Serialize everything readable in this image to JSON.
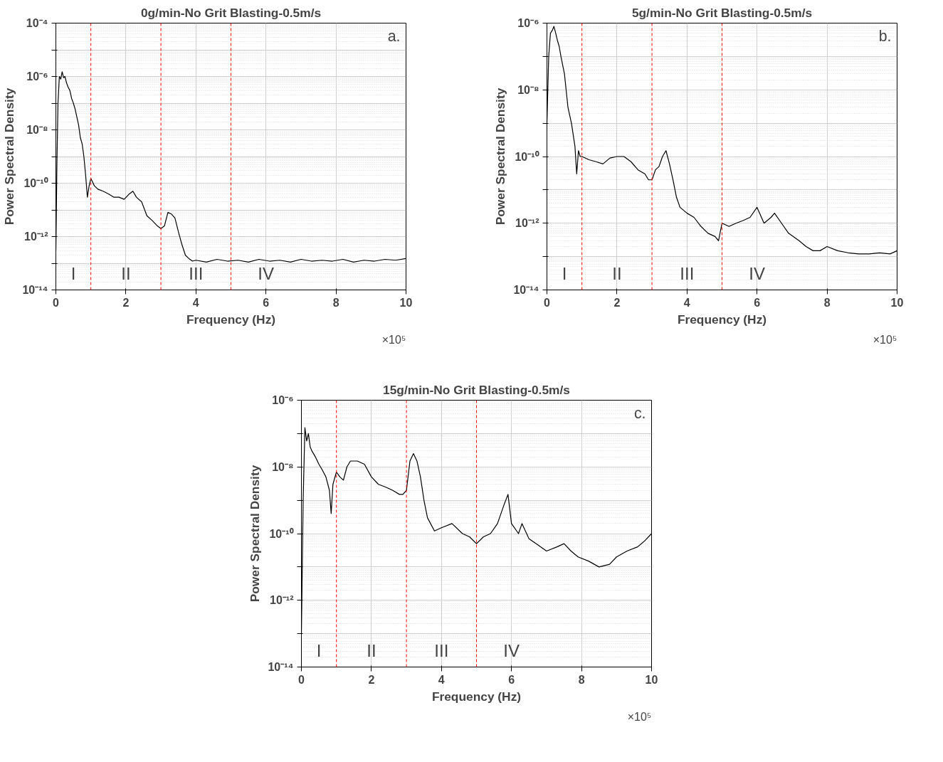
{
  "chart_data": [
    {
      "type": "line",
      "title": "0g/min-No Grit Blasting-0.5m/s",
      "xlabel": "Frequency (Hz)",
      "ylabel": "Power Spectral Density",
      "log": "y",
      "grid": true,
      "line_style": "solid",
      "marker": "none",
      "xlim": [
        0,
        10
      ],
      "xticks": [
        0,
        2,
        4,
        6,
        8,
        10
      ],
      "ylim": [
        1e-14,
        0.0001
      ],
      "yticks": [
        {
          "value": 1e-14,
          "label": "10⁻¹⁴"
        },
        {
          "value": 1e-13,
          "label": null
        },
        {
          "value": 1e-12,
          "label": "10⁻¹²"
        },
        {
          "value": 1e-11,
          "label": null
        },
        {
          "value": 1e-10,
          "label": "10⁻¹⁰"
        },
        {
          "value": 1e-09,
          "label": null
        },
        {
          "value": 1e-08,
          "label": "10⁻⁸"
        },
        {
          "value": 1e-07,
          "label": null
        },
        {
          "value": 1e-06,
          "label": "10⁻⁶"
        },
        {
          "value": 1e-05,
          "label": null
        },
        {
          "value": 0.0001,
          "label": "10⁻⁴"
        }
      ],
      "series": [
        {
          "color": "#000000",
          "x": [
            0.0,
            0.03,
            0.06,
            0.1,
            0.14,
            0.18,
            0.22,
            0.26,
            0.3,
            0.35,
            0.4,
            0.45,
            0.5,
            0.55,
            0.6,
            0.65,
            0.7,
            0.75,
            0.8,
            0.85,
            0.9,
            0.95,
            1.0,
            1.1,
            1.2,
            1.35,
            1.5,
            1.65,
            1.8,
            1.95,
            2.1,
            2.2,
            2.3,
            2.45,
            2.6,
            2.75,
            2.9,
            3.0,
            3.1,
            3.2,
            3.3,
            3.4,
            3.5,
            3.6,
            3.7,
            3.8,
            3.9,
            4.0,
            4.3,
            4.6,
            4.9,
            5.2,
            5.5,
            5.8,
            6.1,
            6.4,
            6.7,
            7.0,
            7.3,
            7.6,
            7.9,
            8.2,
            8.5,
            8.8,
            9.1,
            9.4,
            9.7,
            10.0
          ],
          "values": [
            3e-13,
            5e-10,
            1e-07,
            1e-06,
            8e-07,
            1.5e-06,
            9e-07,
            1e-06,
            6e-07,
            4e-07,
            3e-07,
            1.5e-07,
            1e-07,
            6e-08,
            3e-08,
            1.5e-08,
            5e-09,
            3e-09,
            1e-09,
            2e-10,
            3e-11,
            8e-11,
            1.5e-10,
            8e-11,
            6e-11,
            5e-11,
            4e-11,
            3e-11,
            3e-11,
            2.5e-11,
            4e-11,
            5e-11,
            3e-11,
            2e-11,
            6e-12,
            4e-12,
            2.5e-12,
            2e-12,
            2.5e-12,
            8e-12,
            7e-12,
            5e-12,
            1.5e-12,
            5e-13,
            2e-13,
            1.5e-13,
            1.2e-13,
            1.3e-13,
            1.1e-13,
            1.4e-13,
            1.2e-13,
            1.3e-13,
            1.1e-13,
            1.4e-13,
            1.2e-13,
            1.3e-13,
            1.1e-13,
            1.4e-13,
            1.2e-13,
            1.3e-13,
            1.2e-13,
            1.4e-13,
            1.1e-13,
            1.3e-13,
            1.2e-13,
            1.4e-13,
            1.3e-13,
            1.5e-13
          ]
        }
      ],
      "ref_lines": [
        {
          "axis": "x",
          "value": 1,
          "color": "#ff0000",
          "line_style": "dashed"
        },
        {
          "axis": "x",
          "value": 3,
          "color": "#ff0000",
          "line_style": "dashed"
        },
        {
          "axis": "x",
          "value": 5,
          "color": "#ff0000",
          "line_style": "dashed"
        }
      ],
      "annotations": [
        "a.",
        "×10⁵",
        "I",
        "II",
        "III",
        "IV"
      ]
    },
    {
      "type": "line",
      "title": "5g/min-No Grit Blasting-0.5m/s",
      "xlabel": "Frequency (Hz)",
      "ylabel": "Power Spectral Density",
      "log": "y",
      "grid": true,
      "line_style": "solid",
      "marker": "none",
      "xlim": [
        0,
        10
      ],
      "xticks": [
        0,
        2,
        4,
        6,
        8,
        10
      ],
      "ylim": [
        1e-14,
        1e-06
      ],
      "yticks": [
        {
          "value": 1e-14,
          "label": "10⁻¹⁴"
        },
        {
          "value": 1e-13,
          "label": null
        },
        {
          "value": 1e-12,
          "label": "10⁻¹²"
        },
        {
          "value": 1e-11,
          "label": null
        },
        {
          "value": 1e-10,
          "label": "10⁻¹⁰"
        },
        {
          "value": 1e-09,
          "label": null
        },
        {
          "value": 1e-08,
          "label": "10⁻⁸"
        },
        {
          "value": 1e-07,
          "label": null
        },
        {
          "value": 1e-06,
          "label": "10⁻⁶"
        }
      ],
      "series": [
        {
          "color": "#000000",
          "x": [
            0.0,
            0.05,
            0.1,
            0.15,
            0.2,
            0.25,
            0.3,
            0.35,
            0.4,
            0.5,
            0.6,
            0.7,
            0.8,
            0.85,
            0.9,
            0.95,
            1.0,
            1.2,
            1.4,
            1.6,
            1.8,
            2.0,
            2.2,
            2.4,
            2.6,
            2.8,
            2.9,
            3.0,
            3.1,
            3.2,
            3.3,
            3.4,
            3.5,
            3.6,
            3.7,
            3.8,
            4.0,
            4.2,
            4.4,
            4.6,
            4.8,
            4.9,
            5.0,
            5.2,
            5.4,
            5.6,
            5.8,
            6.0,
            6.2,
            6.4,
            6.5,
            6.7,
            6.9,
            7.2,
            7.4,
            7.6,
            7.8,
            8.0,
            8.3,
            8.6,
            8.9,
            9.2,
            9.5,
            9.8,
            10.0
          ],
          "values": [
            1e-09,
            1e-07,
            5e-07,
            6e-07,
            8e-07,
            5e-07,
            3e-07,
            2e-07,
            1e-07,
            3e-08,
            3e-09,
            1e-09,
            2e-10,
            3e-11,
            1.5e-10,
            1e-10,
            1e-10,
            8e-11,
            7e-11,
            6e-11,
            9e-11,
            1e-10,
            1e-10,
            7e-11,
            4e-11,
            3e-11,
            2e-11,
            2e-11,
            4e-11,
            5e-11,
            1e-10,
            1.5e-10,
            6e-11,
            2e-11,
            6e-12,
            3e-12,
            2e-12,
            1.5e-12,
            8e-13,
            5e-13,
            4e-13,
            3e-13,
            1e-12,
            8e-13,
            1e-12,
            1.2e-12,
            1.5e-12,
            3e-12,
            1e-12,
            1.5e-12,
            2e-12,
            1e-12,
            5e-13,
            3e-13,
            2e-13,
            1.5e-13,
            1.5e-13,
            2e-13,
            1.5e-13,
            1.3e-13,
            1.2e-13,
            1.2e-13,
            1.3e-13,
            1.2e-13,
            1.5e-13
          ]
        }
      ],
      "ref_lines": [
        {
          "axis": "x",
          "value": 1,
          "color": "#ff0000",
          "line_style": "dashed"
        },
        {
          "axis": "x",
          "value": 3,
          "color": "#ff0000",
          "line_style": "dashed"
        },
        {
          "axis": "x",
          "value": 5,
          "color": "#ff0000",
          "line_style": "dashed"
        }
      ],
      "annotations": [
        "b.",
        "×10⁵",
        "I",
        "II",
        "III",
        "IV"
      ]
    },
    {
      "type": "line",
      "title": "15g/min-No Grit Blasting-0.5m/s",
      "xlabel": "Frequency (Hz)",
      "ylabel": "Power Spectral Density",
      "log": "y",
      "grid": true,
      "line_style": "solid",
      "marker": "none",
      "xlim": [
        0,
        10
      ],
      "xticks": [
        0,
        2,
        4,
        6,
        8,
        10
      ],
      "ylim": [
        1e-14,
        1e-06
      ],
      "yticks": [
        {
          "value": 1e-14,
          "label": "10⁻¹⁴"
        },
        {
          "value": 1e-13,
          "label": null
        },
        {
          "value": 1e-12,
          "label": "10⁻¹²"
        },
        {
          "value": 1e-11,
          "label": null
        },
        {
          "value": 1e-10,
          "label": "10⁻¹⁰"
        },
        {
          "value": 1e-09,
          "label": null
        },
        {
          "value": 1e-08,
          "label": "10⁻⁸"
        },
        {
          "value": 1e-07,
          "label": null
        },
        {
          "value": 1e-06,
          "label": "10⁻⁶"
        }
      ],
      "series": [
        {
          "color": "#000000",
          "x": [
            0.0,
            0.05,
            0.1,
            0.15,
            0.2,
            0.25,
            0.3,
            0.4,
            0.5,
            0.6,
            0.7,
            0.8,
            0.85,
            0.9,
            1.0,
            1.1,
            1.2,
            1.3,
            1.4,
            1.6,
            1.8,
            2.0,
            2.2,
            2.4,
            2.6,
            2.8,
            2.9,
            3.0,
            3.1,
            3.2,
            3.3,
            3.4,
            3.5,
            3.6,
            3.8,
            4.0,
            4.3,
            4.6,
            4.8,
            5.0,
            5.2,
            5.4,
            5.6,
            5.8,
            5.9,
            6.0,
            6.2,
            6.3,
            6.5,
            6.7,
            7.0,
            7.3,
            7.5,
            7.7,
            7.9,
            8.2,
            8.5,
            8.8,
            9.0,
            9.3,
            9.6,
            9.8,
            10.0
          ],
          "values": [
            1e-13,
            1e-09,
            1.5e-07,
            6e-08,
            1e-07,
            4e-08,
            3e-08,
            2e-08,
            1.2e-08,
            8e-09,
            5e-09,
            2e-09,
            4e-10,
            3e-09,
            7e-09,
            5e-09,
            4e-09,
            1e-08,
            1.5e-08,
            1.5e-08,
            1.2e-08,
            5e-09,
            3e-09,
            2.5e-09,
            2e-09,
            1.5e-09,
            1.5e-09,
            2e-09,
            1.5e-08,
            2.5e-08,
            1.5e-08,
            5e-09,
            1e-09,
            3e-10,
            1.2e-10,
            1.5e-10,
            2e-10,
            1e-10,
            8e-11,
            5e-11,
            8e-11,
            1e-10,
            2e-10,
            8e-10,
            1.5e-09,
            2e-10,
            1e-10,
            2e-10,
            7e-11,
            5e-11,
            3e-11,
            4e-11,
            5e-11,
            3e-11,
            2e-11,
            1.5e-11,
            1e-11,
            1.2e-11,
            2e-11,
            3e-11,
            4e-11,
            6e-11,
            1e-10
          ]
        }
      ],
      "ref_lines": [
        {
          "axis": "x",
          "value": 1,
          "color": "#ff0000",
          "line_style": "dashed"
        },
        {
          "axis": "x",
          "value": 3,
          "color": "#ff0000",
          "line_style": "dashed"
        },
        {
          "axis": "x",
          "value": 5,
          "color": "#ff0000",
          "line_style": "dashed"
        }
      ],
      "annotations": [
        "c.",
        "×10⁵",
        "I",
        "II",
        "III",
        "IV"
      ]
    }
  ]
}
